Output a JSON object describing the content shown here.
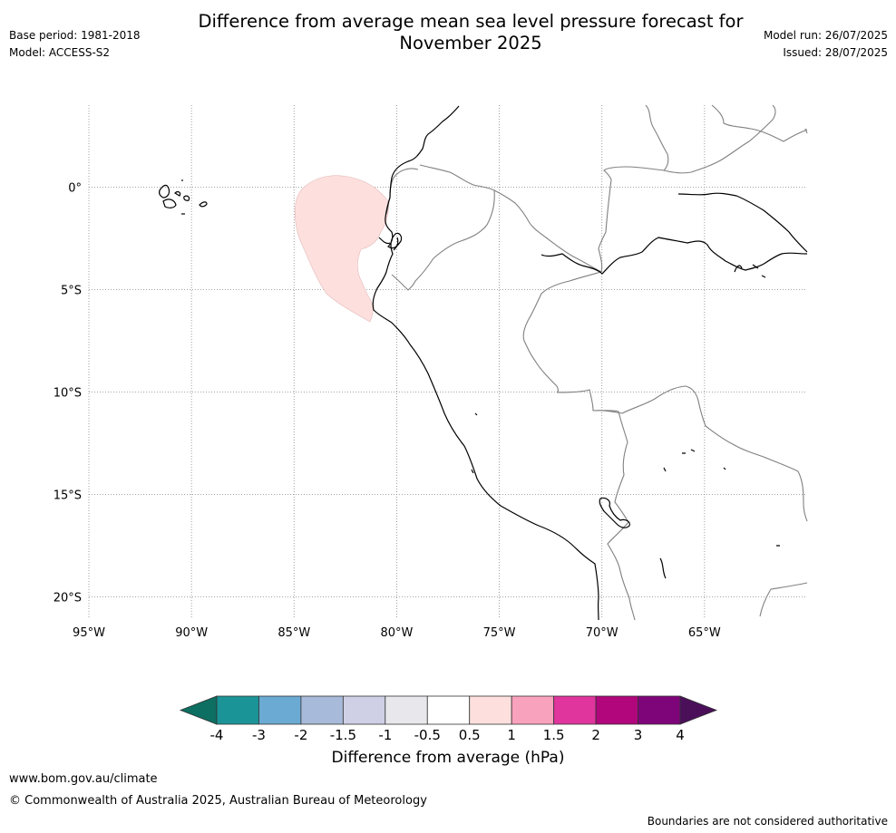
{
  "title": {
    "line1": "Difference from average mean sea level pressure forecast for",
    "line2": "November 2025"
  },
  "header_left": {
    "base_period": "Base period: 1981-2018",
    "model": "Model: ACCESS-S2"
  },
  "header_right": {
    "model_run": "Model run: 26/07/2025",
    "issued": "Issued: 28/07/2025"
  },
  "map": {
    "lon_range": [
      -95,
      -60
    ],
    "lat_range": [
      -21,
      4
    ],
    "gridlines": true,
    "lon_ticks": [
      {
        "value": -95,
        "label": "95°W"
      },
      {
        "value": -90,
        "label": "90°W"
      },
      {
        "value": -85,
        "label": "85°W"
      },
      {
        "value": -80,
        "label": "80°W"
      },
      {
        "value": -75,
        "label": "75°W"
      },
      {
        "value": -70,
        "label": "70°W"
      },
      {
        "value": -65,
        "label": "65°W"
      }
    ],
    "lat_ticks": [
      {
        "value": 0,
        "label": "0°"
      },
      {
        "value": -5,
        "label": "5°S"
      },
      {
        "value": -10,
        "label": "10°S"
      },
      {
        "value": -15,
        "label": "15°S"
      },
      {
        "value": -20,
        "label": "20°S"
      }
    ],
    "anomaly_region": {
      "category": "0.5 to 1",
      "color": "#fde0de"
    }
  },
  "colorbar": {
    "label": "Difference from average (hPa)",
    "tick_labels": [
      "-4",
      "-3",
      "-2",
      "-1.5",
      "-1",
      "-0.5",
      "0.5",
      "1",
      "1.5",
      "2",
      "3",
      "4"
    ],
    "under_color": "#0d6f61",
    "over_color": "#4b0f5a",
    "colors": [
      "#1b9497",
      "#6aaad3",
      "#a8bad9",
      "#cfd0e6",
      "#e8e8ec",
      "#ffffff",
      "#fde0de",
      "#f9a2be",
      "#df359c",
      "#b1067c",
      "#7e0479"
    ]
  },
  "footer": {
    "website": "www.bom.gov.au/climate",
    "copyright": "© Commonwealth of Australia 2025, Australian Bureau of Meteorology",
    "disclaimer": "Boundaries are not considered authoritative"
  }
}
